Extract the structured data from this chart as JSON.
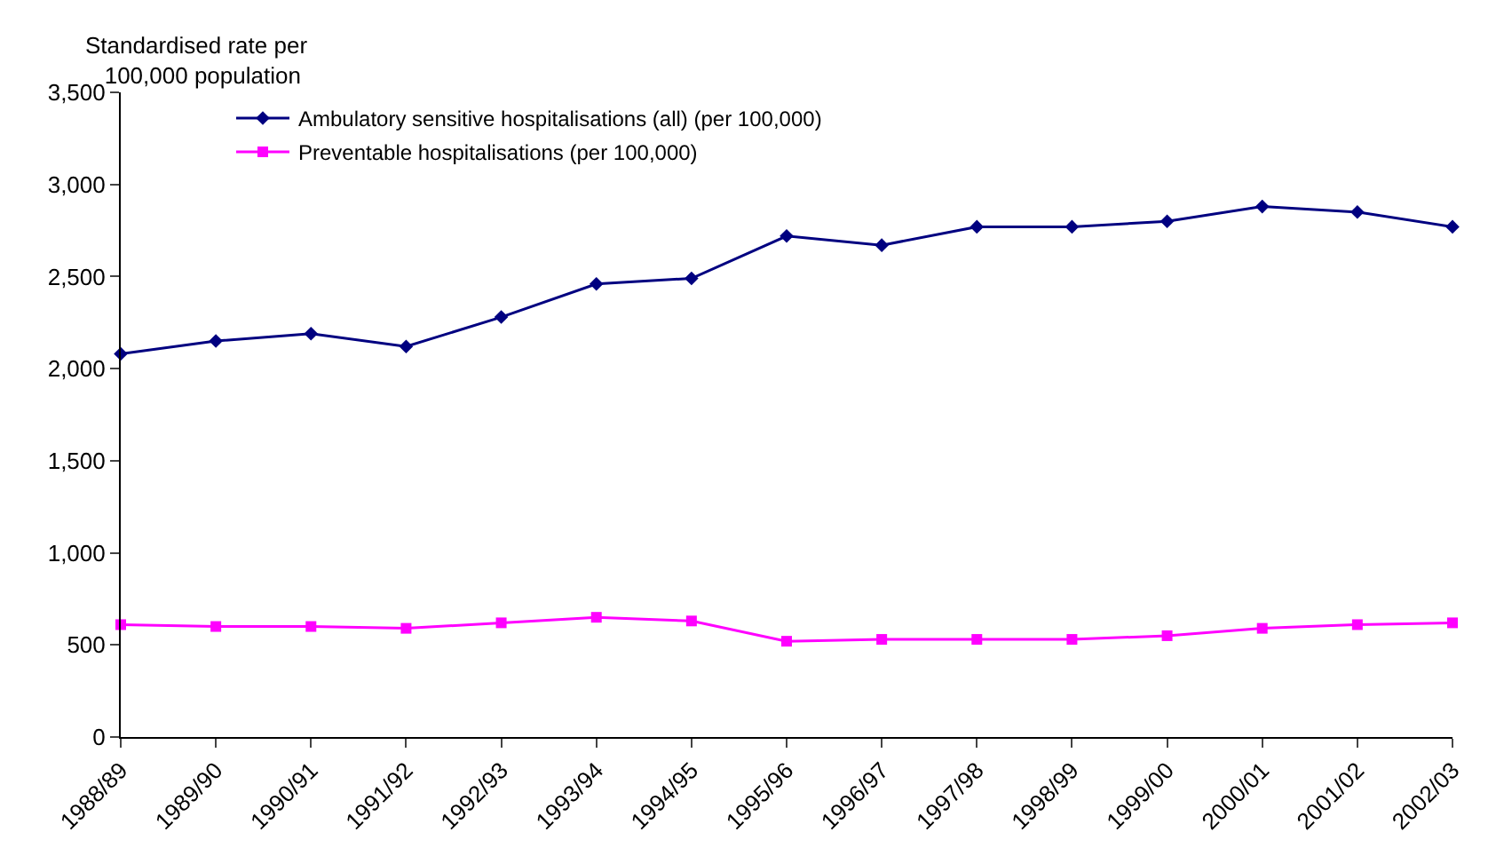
{
  "chart_data": {
    "type": "line",
    "ylabel": "Standardised rate per 100,000 population",
    "categories": [
      "1988/89",
      "1989/90",
      "1990/91",
      "1991/92",
      "1992/93",
      "1993/94",
      "1994/95",
      "1995/96",
      "1996/97",
      "1997/98",
      "1998/99",
      "1999/00",
      "2000/01",
      "2001/02",
      "2002/03"
    ],
    "series": [
      {
        "name": "Ambulatory sensitive hospitalisations (all) (per 100,000)",
        "color": "#000080",
        "marker": "diamond",
        "values": [
          2080,
          2150,
          2190,
          2120,
          2280,
          2460,
          2490,
          2720,
          2670,
          2770,
          2770,
          2800,
          2880,
          2850,
          2770
        ]
      },
      {
        "name": "Preventable hospitalisations (per 100,000)",
        "color": "#ff00ff",
        "marker": "square",
        "values": [
          610,
          600,
          600,
          590,
          620,
          650,
          630,
          520,
          530,
          530,
          530,
          550,
          590,
          610,
          620
        ]
      }
    ],
    "ylim": [
      0,
      3500
    ],
    "yticks": [
      {
        "value": 0,
        "label": "0"
      },
      {
        "value": 500,
        "label": "500"
      },
      {
        "value": 1000,
        "label": "1,000"
      },
      {
        "value": 1500,
        "label": "1,500"
      },
      {
        "value": 2000,
        "label": "2,000"
      },
      {
        "value": 2500,
        "label": "2,500"
      },
      {
        "value": 3000,
        "label": "3,000"
      },
      {
        "value": 3500,
        "label": "3,500"
      }
    ],
    "legend": "top left",
    "line_style": "solid"
  }
}
